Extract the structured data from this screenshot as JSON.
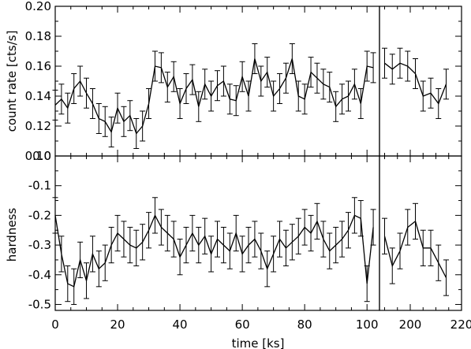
{
  "chart_data": {
    "type": "line",
    "xlabel": "time [ks]",
    "x_segments": [
      {
        "range": [
          0,
          104
        ],
        "ticks": [
          0,
          20,
          40,
          60,
          80,
          100
        ]
      },
      {
        "range": [
          188,
          220
        ],
        "ticks": [
          200,
          220
        ]
      }
    ],
    "x_tick_labels": [
      "0",
      "20",
      "40",
      "60",
      "80",
      "100",
      "200",
      "220"
    ],
    "panels": [
      {
        "name": "count-rate",
        "ylabel": "count rate [cts/s]",
        "ylim": [
          0.1,
          0.2
        ],
        "yticks": [
          0.1,
          0.12,
          0.14,
          0.16,
          0.18,
          0.2
        ],
        "ytick_labels": [
          "0.10",
          "0.12",
          "0.14",
          "0.16",
          "0.18",
          "0.20"
        ],
        "series": [
          {
            "segment": 0,
            "x": [
              0,
              2,
              4,
              6,
              8,
              10,
              12,
              14,
              16,
              18,
              20,
              22,
              24,
              26,
              28,
              30,
              32,
              34,
              36,
              38,
              40,
              42,
              44,
              46,
              48,
              50,
              52,
              54,
              56,
              58,
              60,
              62,
              64,
              66,
              68,
              70,
              72,
              74,
              76,
              78,
              80,
              82,
              84,
              86,
              88,
              90,
              92,
              94,
              96,
              98,
              100,
              102
            ],
            "y": [
              0.134,
              0.138,
              0.132,
              0.145,
              0.15,
              0.142,
              0.135,
              0.125,
              0.123,
              0.116,
              0.132,
              0.123,
              0.127,
              0.115,
              0.12,
              0.135,
              0.16,
              0.159,
              0.146,
              0.153,
              0.135,
              0.145,
              0.151,
              0.133,
              0.148,
              0.14,
              0.147,
              0.15,
              0.138,
              0.137,
              0.153,
              0.14,
              0.165,
              0.15,
              0.156,
              0.14,
              0.145,
              0.152,
              0.165,
              0.14,
              0.138,
              0.156,
              0.152,
              0.148,
              0.146,
              0.133,
              0.138,
              0.14,
              0.148,
              0.135,
              0.16,
              0.159
            ],
            "err": [
              0.01,
              0.01,
              0.01,
              0.01,
              0.01,
              0.01,
              0.01,
              0.01,
              0.01,
              0.01,
              0.01,
              0.01,
              0.01,
              0.01,
              0.01,
              0.01,
              0.01,
              0.01,
              0.01,
              0.01,
              0.01,
              0.01,
              0.01,
              0.01,
              0.01,
              0.01,
              0.01,
              0.01,
              0.01,
              0.01,
              0.01,
              0.01,
              0.01,
              0.01,
              0.01,
              0.01,
              0.01,
              0.01,
              0.01,
              0.01,
              0.01,
              0.01,
              0.01,
              0.01,
              0.01,
              0.01,
              0.01,
              0.01,
              0.01,
              0.01,
              0.01,
              0.01
            ]
          },
          {
            "segment": 1,
            "x": [
              190,
              193,
              196,
              199,
              202,
              205,
              208,
              211,
              214
            ],
            "y": [
              0.162,
              0.158,
              0.162,
              0.16,
              0.155,
              0.14,
              0.142,
              0.135,
              0.148
            ],
            "err": [
              0.01,
              0.01,
              0.01,
              0.01,
              0.01,
              0.01,
              0.01,
              0.01,
              0.01
            ]
          }
        ]
      },
      {
        "name": "hardness",
        "ylabel": "hardness",
        "ylim": [
          -0.52,
          0.0
        ],
        "yticks": [
          -0.5,
          -0.4,
          -0.3,
          -0.2,
          -0.1,
          0.0
        ],
        "ytick_labels": [
          "-0.5",
          "-0.4",
          "-0.3",
          "-0.2",
          "-0.1",
          "0.0"
        ],
        "series": [
          {
            "segment": 0,
            "x": [
              0,
              2,
              4,
              6,
              8,
              10,
              12,
              14,
              16,
              18,
              20,
              22,
              24,
              26,
              28,
              30,
              32,
              34,
              36,
              38,
              40,
              42,
              44,
              46,
              48,
              50,
              52,
              54,
              56,
              58,
              60,
              62,
              64,
              66,
              68,
              70,
              72,
              74,
              76,
              78,
              80,
              82,
              84,
              86,
              88,
              90,
              92,
              94,
              96,
              98,
              100,
              102
            ],
            "y": [
              -0.2,
              -0.33,
              -0.43,
              -0.44,
              -0.35,
              -0.42,
              -0.33,
              -0.38,
              -0.36,
              -0.3,
              -0.26,
              -0.28,
              -0.3,
              -0.31,
              -0.29,
              -0.25,
              -0.2,
              -0.24,
              -0.26,
              -0.28,
              -0.34,
              -0.3,
              -0.26,
              -0.3,
              -0.27,
              -0.33,
              -0.28,
              -0.3,
              -0.32,
              -0.26,
              -0.33,
              -0.3,
              -0.28,
              -0.32,
              -0.38,
              -0.33,
              -0.28,
              -0.31,
              -0.29,
              -0.27,
              -0.24,
              -0.26,
              -0.22,
              -0.28,
              -0.32,
              -0.3,
              -0.28,
              -0.25,
              -0.2,
              -0.21,
              -0.43,
              -0.24
            ],
            "err": [
              0.06,
              0.06,
              0.06,
              0.06,
              0.06,
              0.06,
              0.06,
              0.06,
              0.06,
              0.06,
              0.06,
              0.06,
              0.06,
              0.06,
              0.06,
              0.06,
              0.06,
              0.06,
              0.06,
              0.06,
              0.06,
              0.06,
              0.06,
              0.06,
              0.06,
              0.06,
              0.06,
              0.06,
              0.06,
              0.06,
              0.06,
              0.06,
              0.06,
              0.06,
              0.06,
              0.06,
              0.06,
              0.06,
              0.06,
              0.06,
              0.06,
              0.06,
              0.06,
              0.06,
              0.06,
              0.06,
              0.06,
              0.06,
              0.06,
              0.06,
              0.06,
              0.06
            ]
          },
          {
            "segment": 1,
            "x": [
              190,
              193,
              196,
              199,
              202,
              205,
              208,
              211,
              214
            ],
            "y": [
              -0.27,
              -0.37,
              -0.32,
              -0.24,
              -0.22,
              -0.31,
              -0.31,
              -0.36,
              -0.41
            ],
            "err": [
              0.06,
              0.06,
              0.06,
              0.06,
              0.06,
              0.06,
              0.06,
              0.06,
              0.06
            ]
          }
        ]
      }
    ]
  }
}
